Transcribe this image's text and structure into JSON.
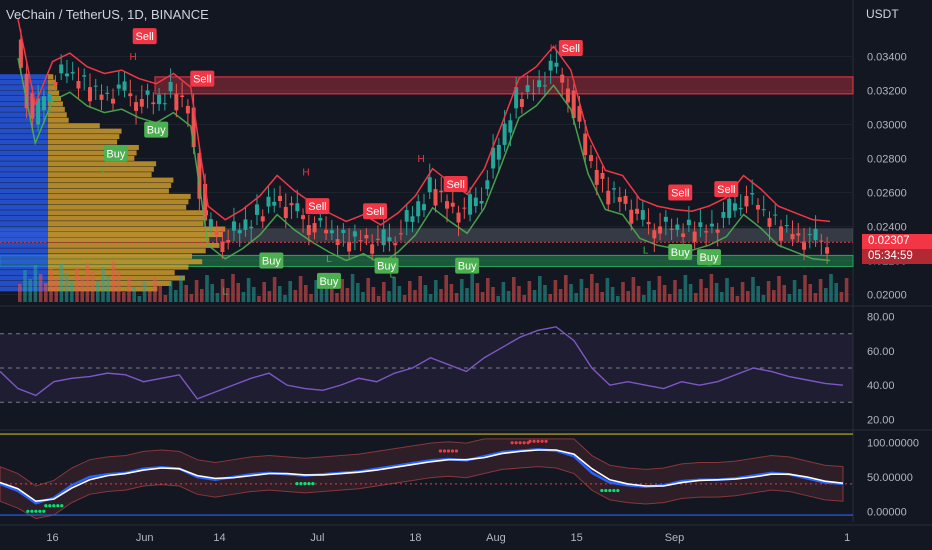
{
  "title": "VeChain / TetherUS, 1D, BINANCE",
  "unit": "USDT",
  "colors": {
    "background": "#131722",
    "up": "#26a69a",
    "down": "#ef5350",
    "buy": "#4caf50",
    "sell": "#f23645",
    "rsi": "#7e57c2",
    "wt": "#ffffff",
    "wt_signal": "#2962ff"
  },
  "current_price": "0.02307",
  "countdown": "05:34:59",
  "x_ticks": [
    "16",
    "Jun",
    "14",
    "Jul",
    "18",
    "Aug",
    "15",
    "Sep",
    "1"
  ],
  "price_ticks": [
    "0.03400",
    "0.03200",
    "0.03000",
    "0.02800",
    "0.02600",
    "0.02400",
    "0.02200",
    "0.02000"
  ],
  "rsi_ticks": [
    "80.00",
    "60.00",
    "40.00",
    "20.00"
  ],
  "osc_ticks": [
    "100.00000",
    "50.00000",
    "0.00000"
  ],
  "chart_data": [
    {
      "type": "line",
      "pane": "price",
      "y_scale": [
        0.0195,
        0.0365
      ],
      "x_dates": [
        "05-10",
        "05-13",
        "05-16",
        "05-19",
        "05-22",
        "05-25",
        "05-28",
        "05-31",
        "06-03",
        "06-06",
        "06-09",
        "06-12",
        "06-15",
        "06-18",
        "06-21",
        "06-24",
        "06-27",
        "06-30",
        "07-03",
        "07-06",
        "07-09",
        "07-12",
        "07-15",
        "07-18",
        "07-21",
        "07-24",
        "07-27",
        "07-30",
        "08-02",
        "08-05",
        "08-08",
        "08-11",
        "08-14",
        "08-17",
        "08-20",
        "08-23",
        "08-26",
        "08-29",
        "09-01",
        "09-04",
        "09-07",
        "09-10",
        "09-13",
        "09-16",
        "09-19",
        "09-22",
        "09-25",
        "09-28"
      ],
      "x_labels": [
        {
          "label": "16",
          "date": "05-16"
        },
        {
          "label": "Jun",
          "date": "06-01"
        },
        {
          "label": "14",
          "date": "06-14"
        },
        {
          "label": "Jul",
          "date": "07-01"
        },
        {
          "label": "18",
          "date": "07-18"
        },
        {
          "label": "Aug",
          "date": "08-01"
        },
        {
          "label": "15",
          "date": "08-15"
        },
        {
          "label": "Sep",
          "date": "09-01"
        },
        {
          "label": "1",
          "date": "10-01"
        }
      ],
      "close": [
        0.035,
        0.03,
        0.0325,
        0.033,
        0.0322,
        0.0318,
        0.032,
        0.0315,
        0.0312,
        0.0318,
        0.031,
        0.024,
        0.0232,
        0.0238,
        0.0246,
        0.0258,
        0.0249,
        0.0242,
        0.0236,
        0.0231,
        0.0235,
        0.0229,
        0.0236,
        0.0246,
        0.0262,
        0.0254,
        0.0247,
        0.0262,
        0.0288,
        0.0315,
        0.0322,
        0.0334,
        0.032,
        0.0282,
        0.0261,
        0.0258,
        0.0244,
        0.024,
        0.0238,
        0.0237,
        0.024,
        0.0245,
        0.0258,
        0.025,
        0.024,
        0.0236,
        0.0232,
        0.0231
      ],
      "supply_zone": [
        0.0318,
        0.0328
      ],
      "demand_zone": [
        0.02165,
        0.0223
      ],
      "poc_zone": [
        0.0231,
        0.0239
      ],
      "signals": [
        {
          "type": "Sell",
          "date": "06-01",
          "price": 0.0352
        },
        {
          "type": "Sell",
          "date": "06-11",
          "price": 0.0327
        },
        {
          "type": "Buy",
          "date": "05-27",
          "price": 0.0283
        },
        {
          "type": "Buy",
          "date": "06-03",
          "price": 0.0297
        },
        {
          "type": "Buy",
          "date": "06-23",
          "price": 0.022
        },
        {
          "type": "Sell",
          "date": "07-01",
          "price": 0.0252
        },
        {
          "type": "Buy",
          "date": "07-03",
          "price": 0.0208
        },
        {
          "type": "Sell",
          "date": "07-11",
          "price": 0.0249
        },
        {
          "type": "Buy",
          "date": "07-13",
          "price": 0.0217
        },
        {
          "type": "Sell",
          "date": "07-25",
          "price": 0.0265
        },
        {
          "type": "Buy",
          "date": "07-27",
          "price": 0.0217
        },
        {
          "type": "Sell",
          "date": "08-14",
          "price": 0.0345
        },
        {
          "type": "Sell",
          "date": "09-02",
          "price": 0.026
        },
        {
          "type": "Buy",
          "date": "09-02",
          "price": 0.0225
        },
        {
          "type": "Buy",
          "date": "09-07",
          "price": 0.0222
        },
        {
          "type": "Sell",
          "date": "09-10",
          "price": 0.0262
        }
      ],
      "hl_marks": [
        {
          "text": "H",
          "date": "05-30",
          "price": 0.0338
        },
        {
          "text": "L",
          "date": "05-25",
          "price": 0.0271
        },
        {
          "text": "H",
          "date": "06-29",
          "price": 0.027
        },
        {
          "text": "H",
          "date": "07-19",
          "price": 0.0278
        },
        {
          "text": "H",
          "date": "08-11",
          "price": 0.0343
        },
        {
          "text": "L",
          "date": "07-03",
          "price": 0.0219
        },
        {
          "text": "L",
          "date": "07-14",
          "price": 0.021
        },
        {
          "text": "L",
          "date": "06-15",
          "price": 0.02
        },
        {
          "text": "L",
          "date": "08-27",
          "price": 0.0224
        },
        {
          "text": "L",
          "date": "09-07",
          "price": 0.0217
        }
      ]
    },
    {
      "type": "line",
      "pane": "rsi",
      "name": "RSI",
      "ylim": [
        15,
        85
      ],
      "bands": [
        70,
        50,
        30
      ],
      "values": [
        48,
        38,
        34,
        42,
        44,
        45,
        47,
        46,
        42,
        44,
        46,
        32,
        36,
        40,
        44,
        47,
        40,
        38,
        37,
        40,
        44,
        42,
        47,
        50,
        56,
        52,
        48,
        56,
        62,
        68,
        72,
        74,
        66,
        50,
        40,
        42,
        40,
        38,
        42,
        40,
        42,
        46,
        50,
        48,
        45,
        43,
        41,
        40
      ]
    },
    {
      "type": "line",
      "pane": "oscillator",
      "ylim": [
        -15,
        115
      ],
      "levels": [
        112,
        40,
        -5
      ],
      "series": [
        {
          "values": [
            40,
            30,
            12,
            20,
            38,
            50,
            54,
            56,
            62,
            64,
            62,
            50,
            46,
            50,
            54,
            56,
            54,
            52,
            54,
            56,
            58,
            62,
            66,
            70,
            74,
            76,
            74,
            80,
            86,
            88,
            90,
            88,
            80,
            56,
            42,
            38,
            36,
            38,
            44,
            46,
            46,
            48,
            52,
            56,
            54,
            48,
            42,
            40
          ]
        },
        {
          "values": [
            42,
            33,
            15,
            18,
            34,
            46,
            52,
            55,
            60,
            63,
            62,
            52,
            48,
            49,
            52,
            55,
            55,
            53,
            53,
            55,
            57,
            60,
            64,
            68,
            72,
            75,
            75,
            78,
            84,
            87,
            89,
            89,
            83,
            62,
            46,
            40,
            37,
            37,
            42,
            45,
            46,
            47,
            50,
            54,
            54,
            50,
            44,
            41
          ]
        }
      ]
    }
  ]
}
